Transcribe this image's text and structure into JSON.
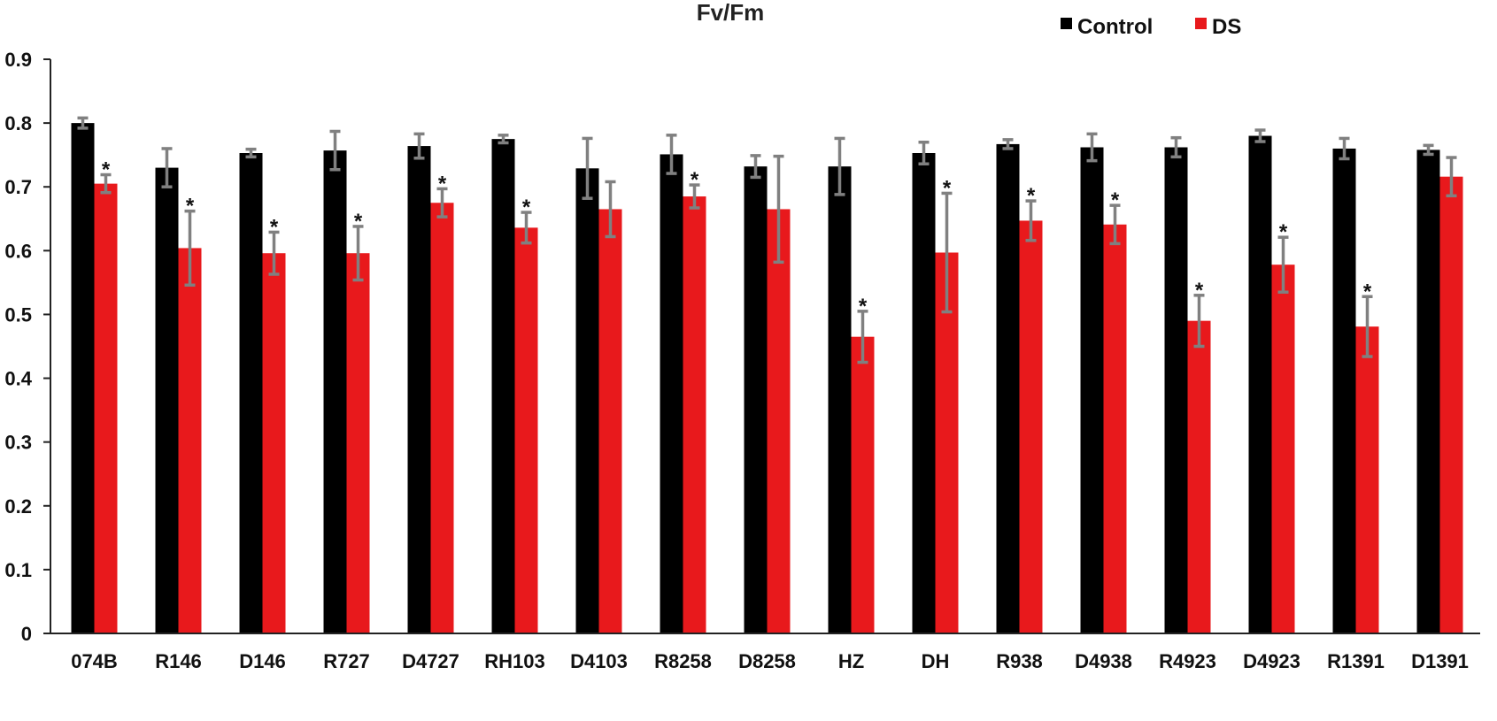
{
  "chart_data": {
    "type": "bar",
    "title": "Fv/Fm",
    "xlabel": "",
    "ylabel": "",
    "ylim": [
      0,
      0.9
    ],
    "yticks": [
      "0",
      "0.1",
      "0.2",
      "0.3",
      "0.4",
      "0.5",
      "0.6",
      "0.7",
      "0.8",
      "0.9"
    ],
    "grid": false,
    "legend_position": "top-right",
    "categories": [
      "074B",
      "R146",
      "D146",
      "R727",
      "D4727",
      "RH103",
      "D4103",
      "R8258",
      "D8258",
      "HZ",
      "DH",
      "R938",
      "D4938",
      "R4923",
      "D4923",
      "R1391",
      "D1391"
    ],
    "series": [
      {
        "name": "Control",
        "color": "#000000",
        "values": [
          0.8,
          0.73,
          0.753,
          0.757,
          0.764,
          0.775,
          0.729,
          0.751,
          0.732,
          0.732,
          0.753,
          0.767,
          0.762,
          0.762,
          0.78,
          0.76,
          0.758
        ],
        "errors": [
          0.008,
          0.03,
          0.006,
          0.03,
          0.019,
          0.006,
          0.047,
          0.03,
          0.017,
          0.044,
          0.017,
          0.007,
          0.021,
          0.015,
          0.009,
          0.016,
          0.007
        ]
      },
      {
        "name": "DS",
        "color": "#e8191c",
        "values": [
          0.705,
          0.604,
          0.596,
          0.596,
          0.675,
          0.636,
          0.665,
          0.685,
          0.665,
          0.465,
          0.597,
          0.647,
          0.641,
          0.49,
          0.578,
          0.481,
          0.716
        ],
        "errors": [
          0.014,
          0.058,
          0.033,
          0.042,
          0.022,
          0.024,
          0.043,
          0.018,
          0.083,
          0.04,
          0.093,
          0.031,
          0.03,
          0.04,
          0.043,
          0.047,
          0.03
        ],
        "significance": [
          "*",
          "*",
          "*",
          "*",
          "*",
          "*",
          "",
          "*",
          "",
          "*",
          "*",
          "*",
          "*",
          "*",
          "*",
          "*",
          ""
        ]
      }
    ],
    "error_bar_color": "#808080"
  }
}
